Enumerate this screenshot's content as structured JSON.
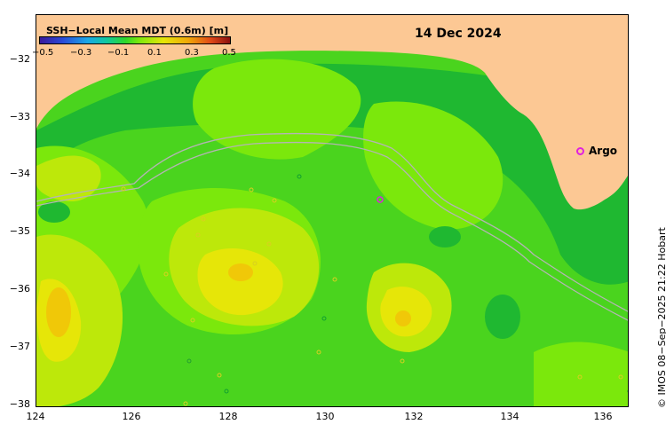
{
  "map": {
    "title": "SSH−Local Mean MDT (0.6m) [m]",
    "date": "14 Dec 2024",
    "credit": "© IMOS 08−Sep−2025 21:22 Hobart",
    "argo_label": "Argo",
    "colorbar_labels": [
      "−0.5",
      "−0.3",
      "−0.1",
      "0.1",
      "0.3",
      "0.5"
    ],
    "y_ticks": [
      "−32",
      "−33",
      "−34",
      "−35",
      "−36",
      "−37",
      "−38"
    ],
    "x_ticks": [
      "124",
      "126",
      "128",
      "130",
      "132",
      "134",
      "136"
    ],
    "colors": {
      "land": "#fcc894",
      "base_green": "#4ad41e",
      "dark_green": "#1fb831",
      "light_green": "#7be80c",
      "yellow_green": "#bde80a",
      "yellow": "#e6e608",
      "orange_yellow": "#f0c808",
      "argo": "#e020e0",
      "shelf_contour": "#b4b4b4"
    }
  }
}
